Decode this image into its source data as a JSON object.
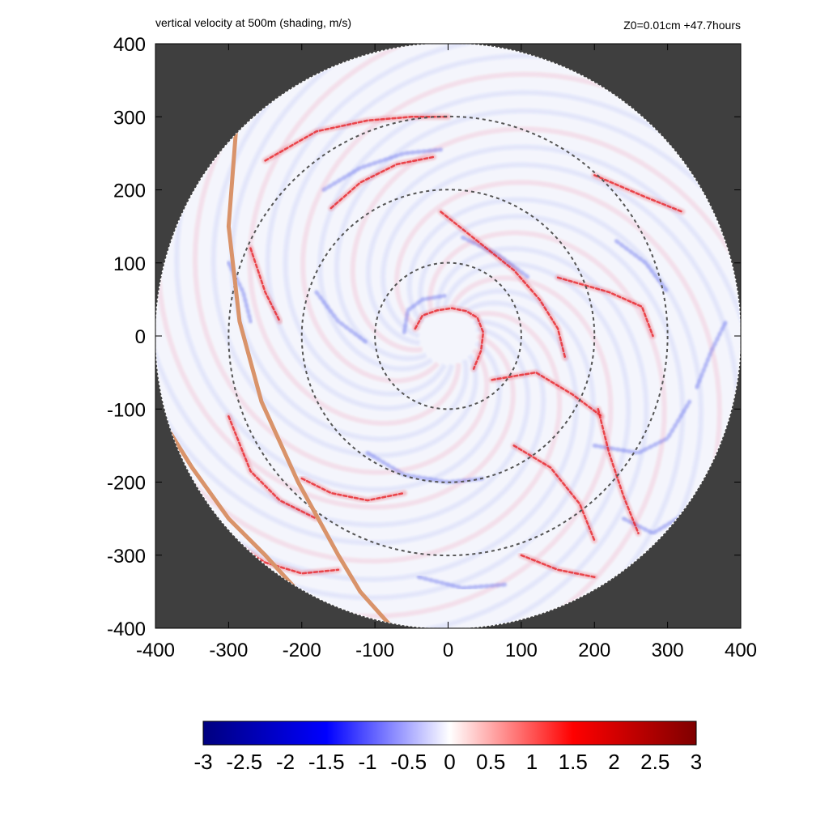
{
  "header": {
    "title": "vertical velocity at 500m (shading, m/s)",
    "info": "Z0=0.01cm  +47.7hours"
  },
  "colors": {
    "background_outside": "#3f3f3f",
    "domain_fill": "#f4f5fc",
    "ring": "#555555",
    "track": "#d9936a",
    "updraft": "#e8262b",
    "downdraft": "#3b49e8"
  },
  "chart_data": {
    "type": "heatmap",
    "title": "vertical velocity at 500m (shading, m/s)",
    "xlabel": "",
    "ylabel": "",
    "xlim": [
      -400,
      400
    ],
    "ylim": [
      -400,
      400
    ],
    "x_ticks": [
      "-400",
      "-300",
      "-200",
      "-100",
      "0",
      "100",
      "200",
      "300",
      "400"
    ],
    "y_ticks": [
      "400",
      "300",
      "200",
      "100",
      "0",
      "-100",
      "-200",
      "-300",
      "-400"
    ],
    "domain_radius": 400,
    "range_rings": [
      100,
      200,
      300
    ],
    "colorbar": {
      "min": -3,
      "max": 3,
      "labels": [
        "-3",
        "-2.5",
        "-2",
        "-1.5",
        "-1",
        "-0.5",
        "0",
        "0.5",
        "1",
        "1.5",
        "2",
        "2.5",
        "3"
      ],
      "stops": [
        "#00007f",
        "#0000ff",
        "#ffffff",
        "#ff0000",
        "#7f0000"
      ]
    },
    "track_lines": [
      [
        [
          -290,
          280
        ],
        [
          -300,
          150
        ],
        [
          -285,
          20
        ],
        [
          -255,
          -90
        ],
        [
          -205,
          -200
        ],
        [
          -150,
          -300
        ],
        [
          -120,
          -350
        ],
        [
          -80,
          -395
        ]
      ],
      [
        [
          -400,
          -100
        ],
        [
          -350,
          -180
        ],
        [
          -300,
          -250
        ],
        [
          -250,
          -300
        ],
        [
          -200,
          -355
        ],
        [
          -175,
          -380
        ]
      ]
    ],
    "w_features": {
      "updraft_bands": [
        [
          [
            -45,
            10
          ],
          [
            -35,
            28
          ],
          [
            -15,
            35
          ],
          [
            5,
            38
          ],
          [
            25,
            34
          ],
          [
            40,
            25
          ],
          [
            48,
            5
          ],
          [
            45,
            -20
          ],
          [
            35,
            -45
          ]
        ],
        [
          [
            -10,
            170
          ],
          [
            40,
            130
          ],
          [
            90,
            90
          ],
          [
            125,
            50
          ],
          [
            150,
            10
          ],
          [
            160,
            -30
          ]
        ],
        [
          [
            150,
            80
          ],
          [
            220,
            60
          ],
          [
            265,
            40
          ],
          [
            280,
            0
          ]
        ],
        [
          [
            -250,
            240
          ],
          [
            -180,
            280
          ],
          [
            -110,
            295
          ],
          [
            -50,
            300
          ],
          [
            0,
            300
          ]
        ],
        [
          [
            -160,
            175
          ],
          [
            -120,
            210
          ],
          [
            -70,
            235
          ],
          [
            -20,
            245
          ]
        ],
        [
          [
            200,
            220
          ],
          [
            270,
            190
          ],
          [
            320,
            170
          ]
        ],
        [
          [
            -200,
            -195
          ],
          [
            -160,
            -215
          ],
          [
            -110,
            -225
          ],
          [
            -60,
            -215
          ]
        ],
        [
          [
            -300,
            -110
          ],
          [
            -270,
            -185
          ],
          [
            -230,
            -225
          ],
          [
            -180,
            -250
          ]
        ],
        [
          [
            -290,
            -285
          ],
          [
            -250,
            -310
          ],
          [
            -200,
            -325
          ],
          [
            -150,
            -320
          ]
        ],
        [
          [
            60,
            -60
          ],
          [
            120,
            -50
          ],
          [
            170,
            -80
          ],
          [
            210,
            -110
          ]
        ],
        [
          [
            205,
            -100
          ],
          [
            220,
            -160
          ],
          [
            240,
            -220
          ],
          [
            260,
            -270
          ]
        ],
        [
          [
            100,
            -300
          ],
          [
            150,
            -320
          ],
          [
            200,
            -330
          ]
        ],
        [
          [
            -270,
            120
          ],
          [
            -250,
            60
          ],
          [
            -230,
            20
          ]
        ],
        [
          [
            90,
            -150
          ],
          [
            140,
            -180
          ],
          [
            180,
            -230
          ],
          [
            200,
            -280
          ]
        ]
      ],
      "downdraft_bands": [
        [
          [
            -60,
            5
          ],
          [
            -55,
            35
          ],
          [
            -35,
            50
          ],
          [
            -5,
            55
          ]
        ],
        [
          [
            -170,
            200
          ],
          [
            -120,
            230
          ],
          [
            -60,
            250
          ],
          [
            -10,
            255
          ]
        ],
        [
          [
            20,
            135
          ],
          [
            70,
            110
          ],
          [
            110,
            80
          ]
        ],
        [
          [
            230,
            130
          ],
          [
            270,
            100
          ],
          [
            300,
            60
          ]
        ],
        [
          [
            200,
            -150
          ],
          [
            260,
            -160
          ],
          [
            300,
            -140
          ],
          [
            330,
            -90
          ]
        ],
        [
          [
            -110,
            -160
          ],
          [
            -60,
            -190
          ],
          [
            0,
            -200
          ],
          [
            50,
            -195
          ]
        ],
        [
          [
            240,
            -250
          ],
          [
            280,
            -270
          ],
          [
            330,
            -240
          ]
        ],
        [
          [
            -40,
            -330
          ],
          [
            20,
            -345
          ],
          [
            80,
            -340
          ]
        ],
        [
          [
            -180,
            60
          ],
          [
            -150,
            20
          ],
          [
            -110,
            -10
          ]
        ],
        [
          [
            340,
            -70
          ],
          [
            360,
            -20
          ],
          [
            380,
            20
          ]
        ],
        [
          [
            -300,
            100
          ],
          [
            -280,
            60
          ],
          [
            -270,
            20
          ]
        ]
      ]
    }
  }
}
